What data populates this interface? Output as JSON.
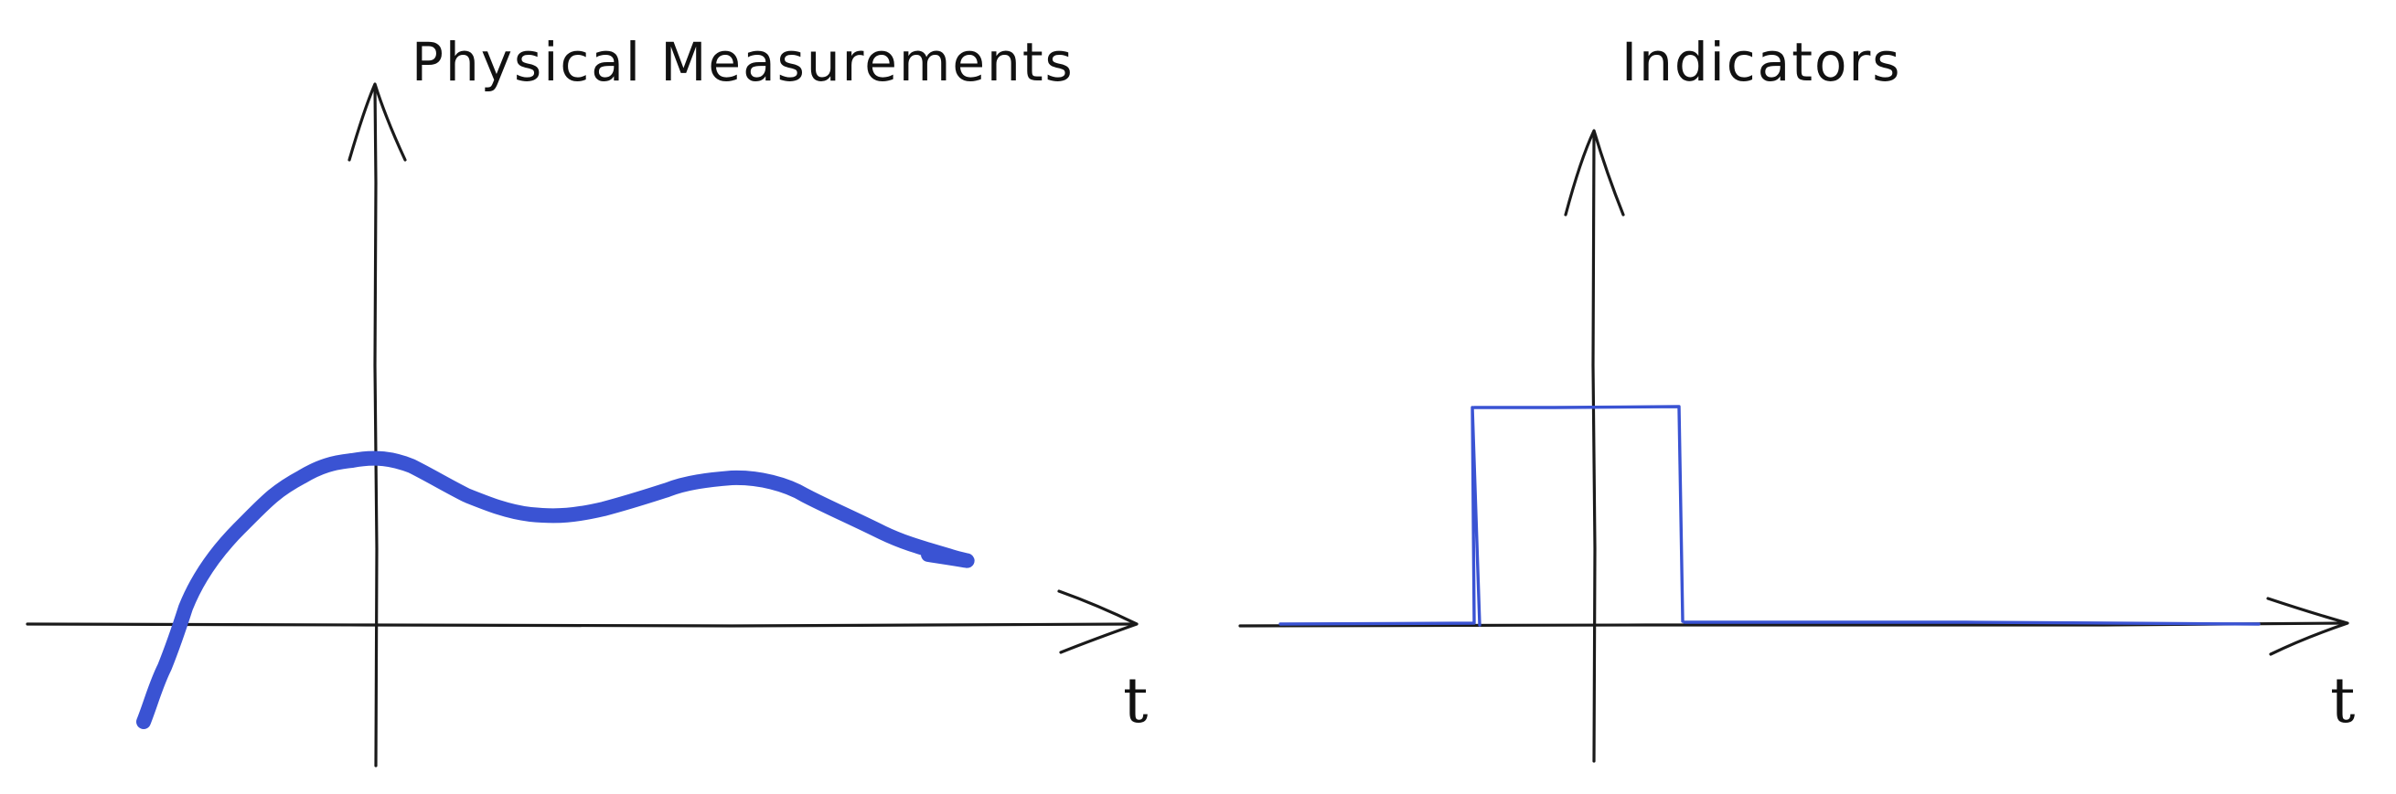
{
  "panels": [
    {
      "id": "physical",
      "title": "Physical Measurements",
      "x_axis_label": "t",
      "signal_color": "#3a53d3",
      "signal_kind": "smooth continuous measurement"
    },
    {
      "id": "indicators",
      "title": "Indicators",
      "x_axis_label": "t",
      "signal_color": "#3a53d3",
      "signal_kind": "rectangular pulse"
    }
  ]
}
